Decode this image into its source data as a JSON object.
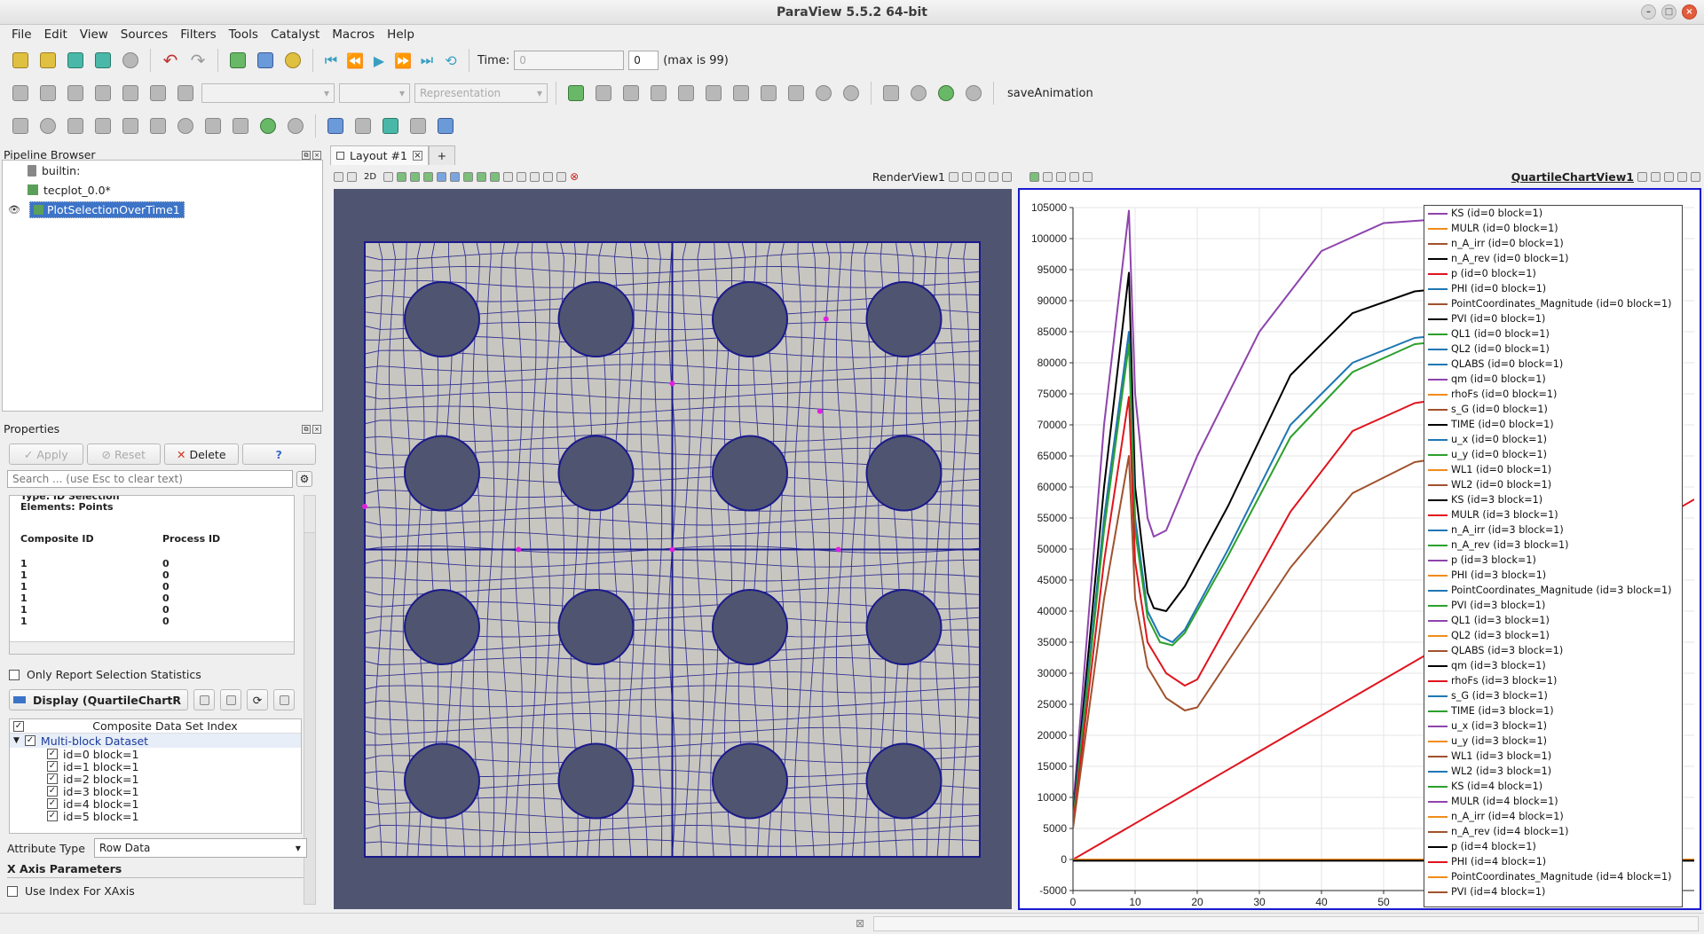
{
  "window": {
    "title": "ParaView 5.5.2 64-bit"
  },
  "menu": [
    "File",
    "Edit",
    "View",
    "Sources",
    "Filters",
    "Tools",
    "Catalyst",
    "Macros",
    "Help"
  ],
  "time": {
    "label": "Time:",
    "value": "0",
    "index": "0",
    "max_label": "(max is 99)"
  },
  "toolbar2": {
    "representation_placeholder": "Representation",
    "macro_label": "saveAnimation"
  },
  "pipeline": {
    "title": "Pipeline Browser",
    "items": [
      "builtin:",
      "tecplot_0.0*",
      "PlotSelectionOverTime1"
    ]
  },
  "properties": {
    "title": "Properties",
    "apply": "Apply",
    "reset": "Reset",
    "delete": "Delete",
    "help": "?",
    "search_placeholder": "Search ... (use Esc to clear text)",
    "info_partial": "Type: ID Selection",
    "info_elements": "Elements: Points",
    "col1": "Composite ID",
    "col2": "Process ID",
    "rows": [
      [
        "1",
        "0"
      ],
      [
        "1",
        "0"
      ],
      [
        "1",
        "0"
      ],
      [
        "1",
        "0"
      ],
      [
        "1",
        "0"
      ],
      [
        "1",
        "0"
      ]
    ],
    "only_stats": "Only Report Selection Statistics",
    "display_label": "Display (QuartileChartR",
    "composite_header": "Composite Data Set Index",
    "multiblock": "Multi-block Dataset",
    "blocks": [
      "id=0 block=1",
      "id=1 block=1",
      "id=2 block=1",
      "id=3 block=1",
      "id=4 block=1",
      "id=5 block=1"
    ],
    "attribute_label": "Attribute Type",
    "attribute_value": "Row Data",
    "xaxis_header": "X Axis Parameters",
    "use_index": "Use Index For XAxis"
  },
  "layout": {
    "tab": "Layout #1",
    "plus": "+",
    "render_view": "RenderView1",
    "chart_view": "QuartileChartView1",
    "two_d": "2D"
  },
  "colors": {
    "purple": "#8e44ad",
    "orange": "#f08c1a",
    "brown": "#a0522d",
    "black": "#000000",
    "red": "#e0141e",
    "blue": "#1f77b4",
    "green": "#2ca02c",
    "accent": "#3c74c8",
    "mesh": "#1a1a8c",
    "render_bg": "#4f5470"
  },
  "legend": [
    {
      "label": "KS (id=0 block=1)",
      "color": "#8e44ad"
    },
    {
      "label": "MULR (id=0 block=1)",
      "color": "#f08c1a"
    },
    {
      "label": "n_A_irr (id=0 block=1)",
      "color": "#a0522d"
    },
    {
      "label": "n_A_rev (id=0 block=1)",
      "color": "#000000"
    },
    {
      "label": "p (id=0 block=1)",
      "color": "#e0141e"
    },
    {
      "label": "PHI (id=0 block=1)",
      "color": "#1f77b4"
    },
    {
      "label": "PointCoordinates_Magnitude (id=0 block=1)",
      "color": "#a0522d"
    },
    {
      "label": "PVI (id=0 block=1)",
      "color": "#000000"
    },
    {
      "label": "QL1 (id=0 block=1)",
      "color": "#2ca02c"
    },
    {
      "label": "QL2 (id=0 block=1)",
      "color": "#1f77b4"
    },
    {
      "label": "QLABS (id=0 block=1)",
      "color": "#1f77b4"
    },
    {
      "label": "qm (id=0 block=1)",
      "color": "#8e44ad"
    },
    {
      "label": "rhoFs (id=0 block=1)",
      "color": "#f08c1a"
    },
    {
      "label": "s_G (id=0 block=1)",
      "color": "#a0522d"
    },
    {
      "label": "TIME (id=0 block=1)",
      "color": "#000000"
    },
    {
      "label": "u_x (id=0 block=1)",
      "color": "#1f77b4"
    },
    {
      "label": "u_y (id=0 block=1)",
      "color": "#2ca02c"
    },
    {
      "label": "WL1 (id=0 block=1)",
      "color": "#f08c1a"
    },
    {
      "label": "WL2 (id=0 block=1)",
      "color": "#a0522d"
    },
    {
      "label": "KS (id=3 block=1)",
      "color": "#000000"
    },
    {
      "label": "MULR (id=3 block=1)",
      "color": "#e0141e"
    },
    {
      "label": "n_A_irr (id=3 block=1)",
      "color": "#1f77b4"
    },
    {
      "label": "n_A_rev (id=3 block=1)",
      "color": "#2ca02c"
    },
    {
      "label": "p (id=3 block=1)",
      "color": "#8e44ad"
    },
    {
      "label": "PHI (id=3 block=1)",
      "color": "#f08c1a"
    },
    {
      "label": "PointCoordinates_Magnitude (id=3 block=1)",
      "color": "#1f77b4"
    },
    {
      "label": "PVI (id=3 block=1)",
      "color": "#2ca02c"
    },
    {
      "label": "QL1 (id=3 block=1)",
      "color": "#8e44ad"
    },
    {
      "label": "QL2 (id=3 block=1)",
      "color": "#f08c1a"
    },
    {
      "label": "QLABS (id=3 block=1)",
      "color": "#a0522d"
    },
    {
      "label": "qm (id=3 block=1)",
      "color": "#000000"
    },
    {
      "label": "rhoFs (id=3 block=1)",
      "color": "#e0141e"
    },
    {
      "label": "s_G (id=3 block=1)",
      "color": "#1f77b4"
    },
    {
      "label": "TIME (id=3 block=1)",
      "color": "#2ca02c"
    },
    {
      "label": "u_x (id=3 block=1)",
      "color": "#8e44ad"
    },
    {
      "label": "u_y (id=3 block=1)",
      "color": "#f08c1a"
    },
    {
      "label": "WL1 (id=3 block=1)",
      "color": "#a0522d"
    },
    {
      "label": "WL2 (id=3 block=1)",
      "color": "#1f77b4"
    },
    {
      "label": "KS (id=4 block=1)",
      "color": "#2ca02c"
    },
    {
      "label": "MULR (id=4 block=1)",
      "color": "#8e44ad"
    },
    {
      "label": "n_A_irr (id=4 block=1)",
      "color": "#f08c1a"
    },
    {
      "label": "n_A_rev (id=4 block=1)",
      "color": "#a0522d"
    },
    {
      "label": "p (id=4 block=1)",
      "color": "#000000"
    },
    {
      "label": "PHI (id=4 block=1)",
      "color": "#e0141e"
    },
    {
      "label": "PointCoordinates_Magnitude (id=4 block=1)",
      "color": "#f08c1a"
    },
    {
      "label": "PVI (id=4 block=1)",
      "color": "#a0522d"
    }
  ],
  "chart_data": {
    "type": "line",
    "ylim": [
      -5000,
      105000
    ],
    "xlim": [
      0,
      100
    ],
    "yticks": [
      -5000,
      0,
      5000,
      10000,
      15000,
      20000,
      25000,
      30000,
      35000,
      40000,
      45000,
      50000,
      55000,
      60000,
      65000,
      70000,
      75000,
      80000,
      85000,
      90000,
      95000,
      100000,
      105000
    ],
    "xticks": [
      0,
      10,
      20,
      30,
      40,
      50
    ],
    "grid": true,
    "legend_position": "right",
    "series": [
      {
        "color": "#8e44ad",
        "x": [
          0,
          5,
          9,
          10,
          12,
          13,
          15,
          20,
          30,
          40,
          50,
          60,
          70,
          80
        ],
        "y": [
          8000,
          70000,
          104500,
          75000,
          55000,
          52000,
          53000,
          65000,
          85000,
          98000,
          102500,
          103200,
          103400,
          103500
        ]
      },
      {
        "color": "#000000",
        "x": [
          0,
          5,
          9,
          10,
          12,
          13,
          15,
          18,
          25,
          35,
          45,
          55,
          65,
          80
        ],
        "y": [
          7000,
          60000,
          94500,
          60000,
          43000,
          40500,
          40000,
          44000,
          57000,
          78000,
          88000,
          91500,
          92500,
          93000
        ]
      },
      {
        "color": "#1f77b4",
        "x": [
          0,
          5,
          9,
          10,
          12,
          14,
          16,
          18,
          25,
          35,
          45,
          55,
          65,
          80
        ],
        "y": [
          6500,
          55000,
          85000,
          55000,
          40000,
          36000,
          35000,
          37000,
          50000,
          70000,
          80000,
          84000,
          85000,
          85500
        ]
      },
      {
        "color": "#2ca02c",
        "x": [
          0,
          5,
          9,
          10,
          12,
          14,
          16,
          18,
          25,
          35,
          45,
          55,
          65,
          80
        ],
        "y": [
          6000,
          53000,
          83000,
          53000,
          39000,
          35000,
          34500,
          36500,
          49000,
          68000,
          78500,
          83000,
          84000,
          84500
        ]
      },
      {
        "color": "#e0141e",
        "x": [
          0,
          5,
          9,
          10,
          12,
          15,
          18,
          20,
          25,
          35,
          45,
          55,
          65,
          80
        ],
        "y": [
          5500,
          48000,
          74500,
          48000,
          35000,
          30000,
          28000,
          29000,
          38000,
          56000,
          69000,
          73500,
          75000,
          75500
        ]
      },
      {
        "color": "#a0522d",
        "x": [
          0,
          5,
          9,
          10,
          12,
          15,
          18,
          20,
          25,
          35,
          45,
          55,
          65,
          80
        ],
        "y": [
          5000,
          42000,
          65000,
          42000,
          31000,
          26000,
          24000,
          24500,
          32000,
          47000,
          59000,
          64000,
          65500,
          66000
        ]
      },
      {
        "color": "#e0141e",
        "x": [
          0,
          100
        ],
        "y": [
          0,
          58000
        ]
      },
      {
        "color": "#f08c1a",
        "x": [
          0,
          100
        ],
        "y": [
          0,
          0
        ]
      },
      {
        "color": "#000000",
        "x": [
          0,
          100
        ],
        "y": [
          -200,
          -200
        ]
      }
    ]
  }
}
